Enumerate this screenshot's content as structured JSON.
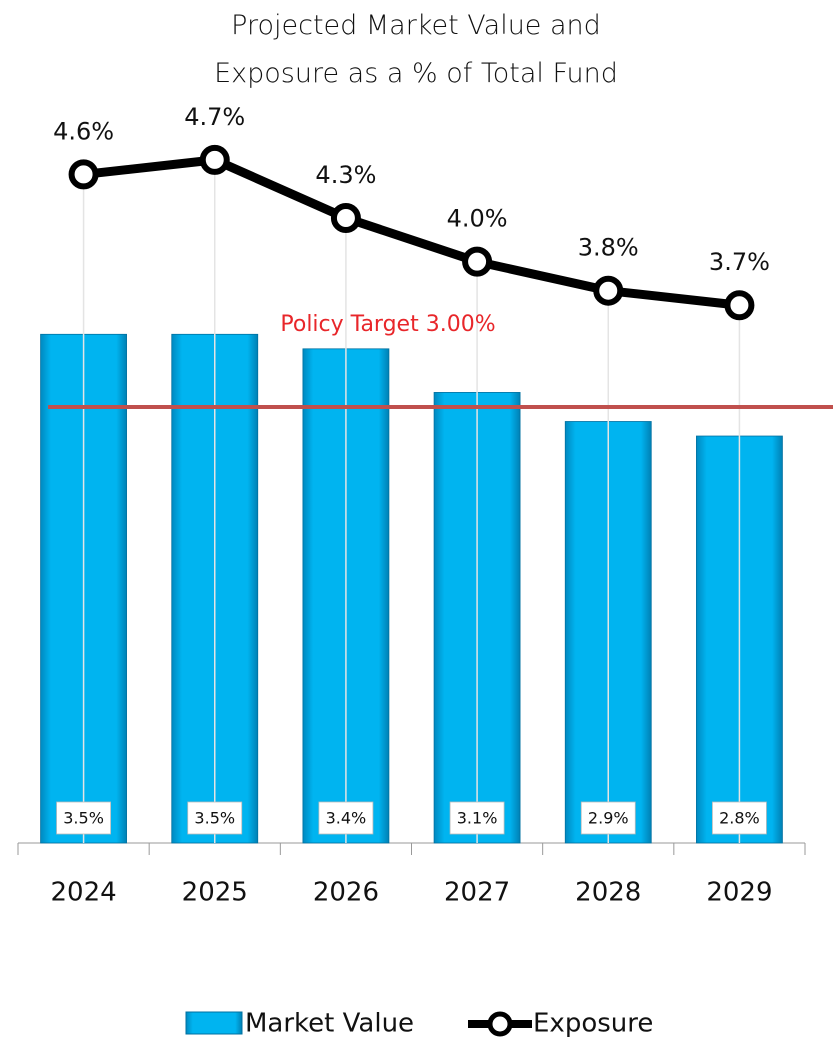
{
  "chart_data": {
    "type": "bar",
    "title": "Projected Market Value and Exposure as a % of Total Fund",
    "categories": [
      "2024",
      "2025",
      "2026",
      "2027",
      "2028",
      "2029"
    ],
    "series": [
      {
        "name": "Market Value",
        "type": "bar",
        "color": "#00b4f0",
        "values": [
          3.5,
          3.5,
          3.4,
          3.1,
          2.9,
          2.8
        ],
        "value_labels": [
          "3.5%",
          "3.5%",
          "3.4%",
          "3.1%",
          "2.9%",
          "2.8%"
        ]
      },
      {
        "name": "Exposure",
        "type": "line",
        "color": "#000000",
        "values": [
          4.6,
          4.7,
          4.3,
          4.0,
          3.8,
          3.7
        ],
        "value_labels": [
          "4.6%",
          "4.7%",
          "4.3%",
          "4.0%",
          "3.8%",
          "3.7%"
        ]
      }
    ],
    "target": {
      "label": "Policy Target 3.00%",
      "value": 3,
      "color": "#c0504d"
    },
    "ylim": [
      0,
      5.8
    ]
  }
}
